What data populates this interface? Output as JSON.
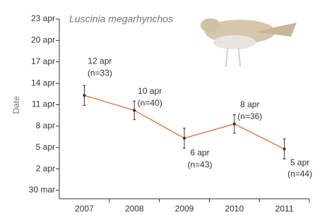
{
  "chart_data": {
    "type": "line",
    "title": "Luscinia megarhynchos",
    "y_label": "Date",
    "categories": [
      "2007",
      "2008",
      "2009",
      "2010",
      "2011"
    ],
    "series": [
      {
        "color": "#e8692a",
        "values": [
          102.3,
          100.2,
          96.3,
          98.3,
          94.8
        ],
        "errors": [
          1.4,
          1.3,
          1.4,
          1.3,
          1.4
        ],
        "value_labels": [
          "12 apr",
          "10 apr",
          "6 apr",
          "8 apr",
          "5 apr"
        ],
        "sample_labels": [
          "(n=33)",
          "(n=40)",
          "(n=43)",
          "(n=36)",
          "(n=44)"
        ]
      }
    ],
    "ylim": [
      89,
      113
    ],
    "yticks": [
      {
        "value": 89,
        "label": "30 mar"
      },
      {
        "value": 92,
        "label": "2 apr"
      },
      {
        "value": 95,
        "label": "5 apr"
      },
      {
        "value": 98,
        "label": "8 apr"
      },
      {
        "value": 101,
        "label": "11 apr"
      },
      {
        "value": 104,
        "label": "14 apr"
      },
      {
        "value": 107,
        "label": "17 apr"
      },
      {
        "value": 110,
        "label": "20 apr"
      },
      {
        "value": 113,
        "label": "23 apr"
      }
    ]
  }
}
